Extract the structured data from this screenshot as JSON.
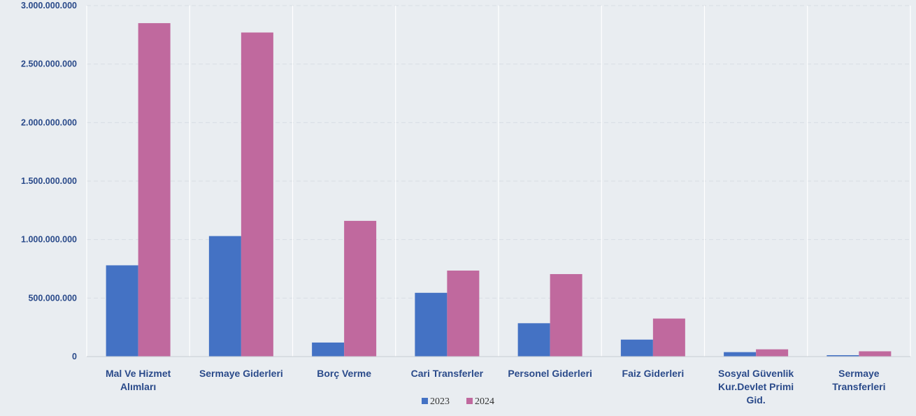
{
  "chart_data": {
    "type": "bar",
    "categories": [
      [
        "Mal Ve Hizmet",
        "Alımları"
      ],
      [
        "Sermaye Giderleri"
      ],
      [
        "Borç Verme"
      ],
      [
        "Cari Transferler"
      ],
      [
        "Personel Giderleri"
      ],
      [
        "Faiz Giderleri"
      ],
      [
        "Sosyal Güvenlik",
        "Kur.Devlet Primi",
        "Gid."
      ],
      [
        "Sermaye",
        "Transferleri"
      ]
    ],
    "series": [
      {
        "name": "2023",
        "color": "#4472c4",
        "values": [
          780000000,
          1030000000,
          120000000,
          545000000,
          285000000,
          145000000,
          38000000,
          12000000
        ]
      },
      {
        "name": "2024",
        "color": "#c0699e",
        "values": [
          2850000000,
          2770000000,
          1160000000,
          735000000,
          705000000,
          325000000,
          62000000,
          45000000
        ]
      }
    ],
    "yticks": [
      0,
      500000000,
      1000000000,
      1500000000,
      2000000000,
      2500000000,
      3000000000
    ],
    "ytick_labels": [
      "0",
      "500.000.000",
      "1.000.000.000",
      "1.500.000.000",
      "2.000.000.000",
      "2.500.000.000",
      "3.000.000.000"
    ],
    "ylim": [
      0,
      3000000000
    ],
    "title": "",
    "xlabel": "",
    "ylabel": "",
    "grid": true,
    "legend": "bottom-center"
  }
}
